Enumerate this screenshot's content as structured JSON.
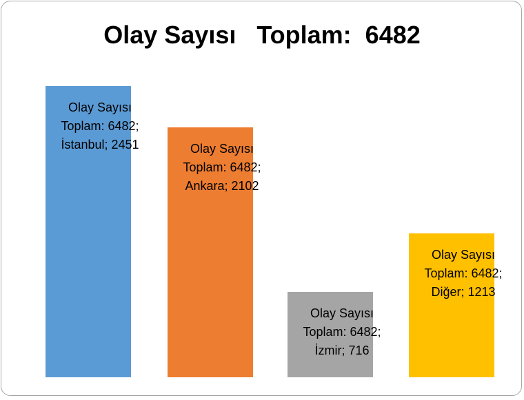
{
  "chart_data": {
    "type": "bar",
    "title": "Olay Sayısı   Toplam:  6482",
    "values": [
      2451,
      2102,
      716,
      1213
    ],
    "value_labels": [
      "Olay Sayısı Toplam: 6482; İstanbul; 2451",
      "Olay Sayısı Toplam: 6482; Ankara; 2102",
      "Olay Sayısı Toplam: 6482; İzmir; 716",
      "Olay Sayısı Toplam: 6482; Diğer; 1213"
    ],
    "colors": [
      "#5b9bd5",
      "#ed7d31",
      "#a5a5a5",
      "#ffc000"
    ],
    "ylim": [
      0,
      2500
    ]
  }
}
